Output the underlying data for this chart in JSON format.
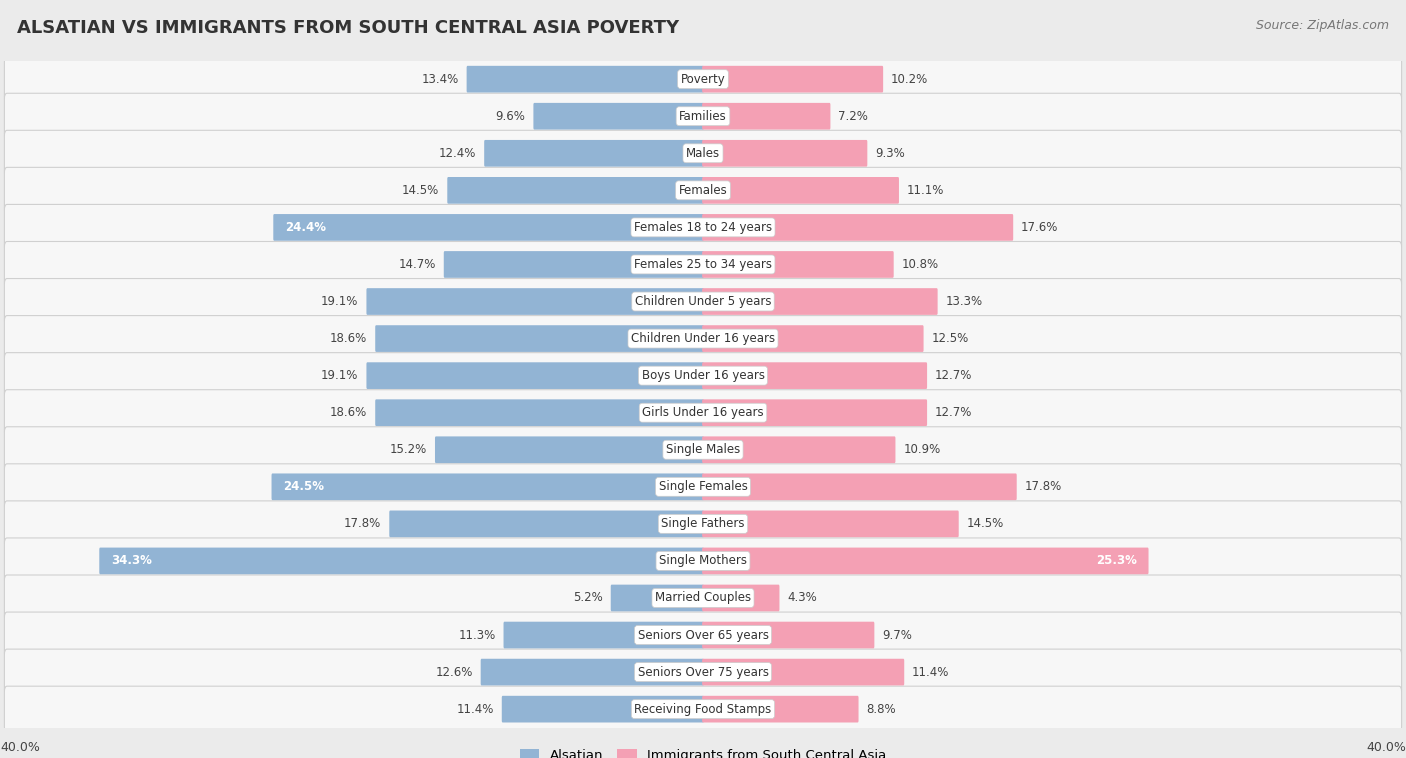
{
  "title": "ALSATIAN VS IMMIGRANTS FROM SOUTH CENTRAL ASIA POVERTY",
  "source": "Source: ZipAtlas.com",
  "categories": [
    "Poverty",
    "Families",
    "Males",
    "Females",
    "Females 18 to 24 years",
    "Females 25 to 34 years",
    "Children Under 5 years",
    "Children Under 16 years",
    "Boys Under 16 years",
    "Girls Under 16 years",
    "Single Males",
    "Single Females",
    "Single Fathers",
    "Single Mothers",
    "Married Couples",
    "Seniors Over 65 years",
    "Seniors Over 75 years",
    "Receiving Food Stamps"
  ],
  "alsatian": [
    13.4,
    9.6,
    12.4,
    14.5,
    24.4,
    14.7,
    19.1,
    18.6,
    19.1,
    18.6,
    15.2,
    24.5,
    17.8,
    34.3,
    5.2,
    11.3,
    12.6,
    11.4
  ],
  "immigrants": [
    10.2,
    7.2,
    9.3,
    11.1,
    17.6,
    10.8,
    13.3,
    12.5,
    12.7,
    12.7,
    10.9,
    17.8,
    14.5,
    25.3,
    4.3,
    9.7,
    11.4,
    8.8
  ],
  "alsatian_color": "#92b4d4",
  "immigrant_color": "#f4a0b4",
  "alsatian_label": "Alsatian",
  "immigrant_label": "Immigrants from South Central Asia",
  "axis_max": 40.0,
  "background_color": "#ebebeb",
  "row_bg_color": "#f7f7f7",
  "row_alt_bg_color": "#f0f0f0",
  "title_fontsize": 13,
  "source_fontsize": 9,
  "label_fontsize": 8.5,
  "value_fontsize": 8.5
}
